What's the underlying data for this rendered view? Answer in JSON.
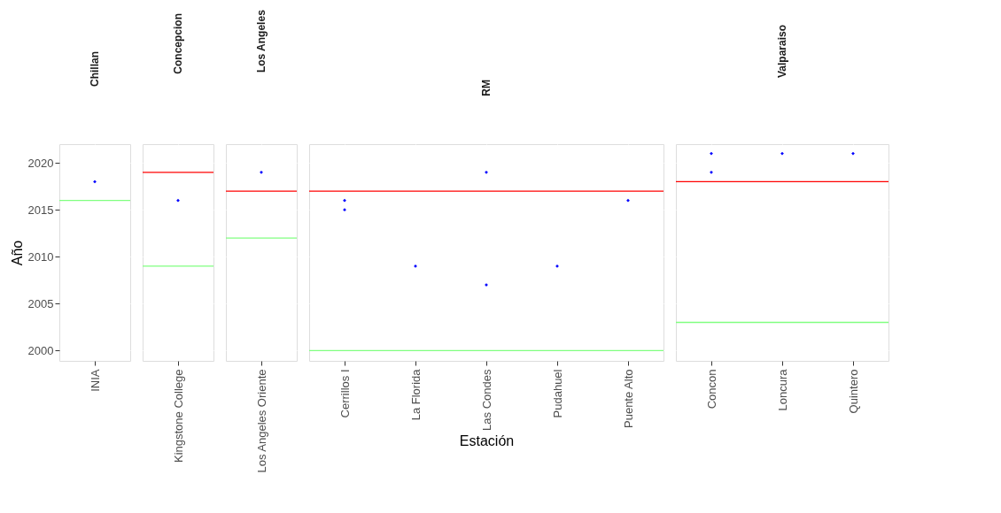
{
  "chart_data": [
    {
      "type": "scatter",
      "title": "Chillan",
      "ylabel": "Año",
      "categories": [
        "INIA"
      ],
      "ylim": [
        1998.9,
        2022
      ],
      "yticks": [
        2000,
        2005,
        2010,
        2015,
        2020
      ],
      "grid": true,
      "marker": "diamond",
      "series": [
        {
          "color": "#0000ff",
          "x": [
            "INIA"
          ],
          "values": [
            2018
          ]
        }
      ],
      "ref_lines": [
        {
          "axis": "y",
          "value": 2016,
          "color": "#80ff80"
        }
      ]
    },
    {
      "type": "scatter",
      "title": "Concepcion",
      "categories": [
        "Kingstone College"
      ],
      "ylim": [
        1998.9,
        2022
      ],
      "yticks": [
        2000,
        2005,
        2010,
        2015,
        2020
      ],
      "grid": true,
      "marker": "diamond",
      "tick_labels": "x",
      "series": [
        {
          "color": "#0000ff",
          "x": [
            "Kingstone College"
          ],
          "values": [
            2016
          ]
        }
      ],
      "ref_lines": [
        {
          "axis": "y",
          "value": 2019,
          "color": "#ff0000"
        },
        {
          "axis": "y",
          "value": 2009,
          "color": "#80ff80"
        }
      ]
    },
    {
      "type": "scatter",
      "title": "Los Angeles",
      "categories": [
        "Los Angeles Oriente"
      ],
      "ylim": [
        1998.9,
        2022
      ],
      "yticks": [
        2000,
        2005,
        2010,
        2015,
        2020
      ],
      "grid": true,
      "marker": "diamond",
      "tick_labels": "x",
      "series": [
        {
          "color": "#0000ff",
          "x": [
            "Los Angeles Oriente"
          ],
          "values": [
            2019
          ]
        }
      ],
      "ref_lines": [
        {
          "axis": "y",
          "value": 2017,
          "color": "#ff0000"
        },
        {
          "axis": "y",
          "value": 2012,
          "color": "#80ff80"
        }
      ]
    },
    {
      "type": "scatter",
      "title": "RM",
      "xlabel": "Estación",
      "categories": [
        "Cerrillos I",
        "La Florida",
        "Las Condes",
        "Pudahuel",
        "Puente Alto"
      ],
      "ylim": [
        1998.9,
        2022
      ],
      "yticks": [
        2000,
        2005,
        2010,
        2015,
        2020
      ],
      "grid": true,
      "marker": "diamond",
      "tick_labels": "x",
      "series": [
        {
          "color": "#0000ff",
          "x": [
            "Cerrillos I",
            "Cerrillos I",
            "La Florida",
            "Las Condes",
            "Las Condes",
            "Pudahuel",
            "Puente Alto"
          ],
          "values": [
            2016,
            2015,
            2009,
            2019,
            2007,
            2009,
            2016
          ]
        }
      ],
      "ref_lines": [
        {
          "axis": "y",
          "value": 2017,
          "color": "#ff0000"
        },
        {
          "axis": "y",
          "value": 2000,
          "color": "#80ff80"
        }
      ]
    },
    {
      "type": "scatter",
      "title": "Valparaiso",
      "categories": [
        "Concon",
        "Loncura",
        "Quintero"
      ],
      "ylim": [
        1998.9,
        2022
      ],
      "yticks": [
        2000,
        2005,
        2010,
        2015,
        2020
      ],
      "grid": true,
      "marker": "diamond",
      "tick_labels": "x",
      "series": [
        {
          "color": "#0000ff",
          "x": [
            "Concon",
            "Concon",
            "Loncura",
            "Quintero"
          ],
          "values": [
            2021,
            2019,
            2021,
            2021
          ]
        }
      ],
      "ref_lines": [
        {
          "axis": "y",
          "value": 2018,
          "color": "#ff0000"
        },
        {
          "axis": "y",
          "value": 2003,
          "color": "#80ff80"
        }
      ]
    }
  ]
}
